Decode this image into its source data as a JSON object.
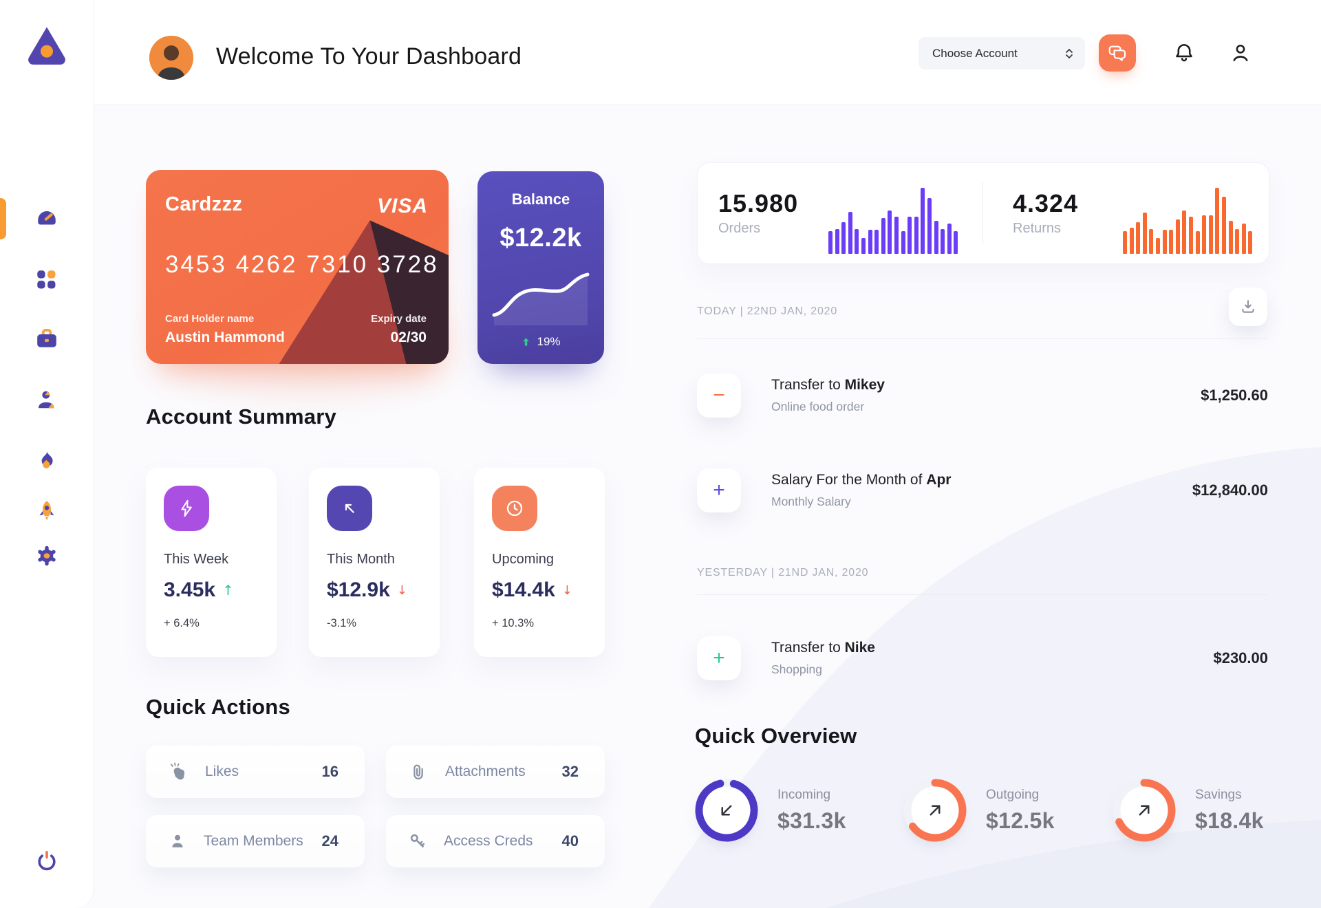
{
  "header": {
    "title": "Welcome To Your Dashboard",
    "account_select": {
      "label": "Choose Account"
    }
  },
  "credit_card": {
    "brand": "Cardzzz",
    "network": "VISA",
    "number": "3453 4262 7310 3728",
    "holder_label": "Card Holder name",
    "holder": "Austin Hammond",
    "expiry_label": "Expiry date",
    "expiry": "02/30"
  },
  "balance_card": {
    "label": "Balance",
    "value": "$12.2k",
    "change": "19%"
  },
  "stats": {
    "orders": {
      "value": "15.980",
      "label": "Orders",
      "chart": {
        "type": "bar",
        "color": "#6B3DF8",
        "bars": [
          34,
          38,
          48,
          64,
          38,
          24,
          36,
          36,
          54,
          66,
          56,
          34,
          56,
          56,
          100,
          84,
          50,
          38,
          46,
          34
        ]
      }
    },
    "returns": {
      "value": "4.324",
      "label": "Returns",
      "chart": {
        "type": "bar",
        "color": "#F9692F",
        "bars": [
          34,
          40,
          48,
          62,
          38,
          24,
          36,
          36,
          52,
          66,
          56,
          34,
          58,
          58,
          100,
          86,
          50,
          38,
          46,
          34
        ]
      }
    }
  },
  "transactions": {
    "sections": [
      {
        "date": "TODAY | 22ND JAN, 2020",
        "rows": [
          {
            "sign": "−",
            "sign_color": "#F4734A",
            "title_prefix": "Transfer to ",
            "title_bold": "Mikey",
            "subtitle": "Online food order",
            "amount": "$1,250.60"
          },
          {
            "sign": "+",
            "sign_color": "#5B51D8",
            "title_prefix": "Salary For the Month of ",
            "title_bold": "Apr",
            "subtitle": "Monthly Salary",
            "amount": "$12,840.00"
          }
        ]
      },
      {
        "date": "YESTERDAY | 21ND JAN, 2020",
        "rows": [
          {
            "sign": "+",
            "sign_color": "#2BC89E",
            "title_prefix": "Transfer to ",
            "title_bold": "Nike",
            "subtitle": "Shopping",
            "amount": "$230.00"
          }
        ]
      }
    ]
  },
  "account_summary": {
    "heading": "Account Summary",
    "items": [
      {
        "label": "This Week",
        "value": "3.45k",
        "trend": "up",
        "trend_glyph": "↑",
        "delta": "+ 6.4%",
        "icon": "lightning",
        "icon_bg": "#A94FE1"
      },
      {
        "label": "This Month",
        "value": "$12.9k",
        "trend": "down",
        "trend_glyph": "↓",
        "delta": "-3.1%",
        "icon": "arrow-up-left",
        "icon_bg": "#5447B2"
      },
      {
        "label": "Upcoming",
        "value": "$14.4k",
        "trend": "down",
        "trend_glyph": "↓",
        "delta": "+ 10.3%",
        "icon": "clock",
        "icon_bg": "#F4835D"
      }
    ]
  },
  "quick_actions": {
    "heading": "Quick Actions",
    "items": [
      {
        "label": "Likes",
        "count": "16",
        "icon": "clap"
      },
      {
        "label": "Attachments",
        "count": "32",
        "icon": "paperclip"
      },
      {
        "label": "Team Members",
        "count": "24",
        "icon": "person"
      },
      {
        "label": "Access Creds",
        "count": "40",
        "icon": "key"
      }
    ]
  },
  "quick_overview": {
    "heading": "Quick Overview",
    "items": [
      {
        "label": "Incoming",
        "value": "$31.3k",
        "color": "#4C3AC5",
        "percent": 92,
        "start": -75,
        "arrow": "down-left"
      },
      {
        "label": "Outgoing",
        "value": "$12.5k",
        "color": "#F97450",
        "percent": 65,
        "start": -90,
        "arrow": "up-right"
      },
      {
        "label": "Savings",
        "value": "$18.4k",
        "color": "#F97450",
        "percent": 68,
        "start": -90,
        "arrow": "up-right"
      }
    ]
  }
}
